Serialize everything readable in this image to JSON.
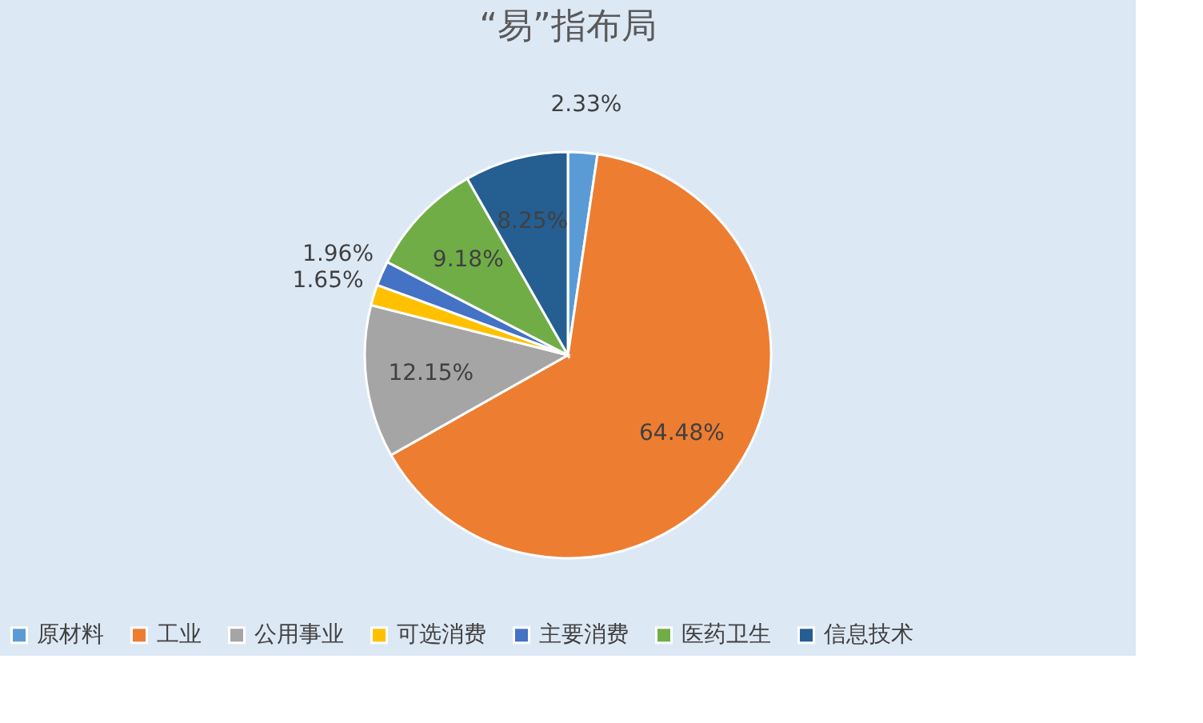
{
  "chart_data": {
    "type": "pie",
    "title": "“易”指布局",
    "categories": [
      "原材料",
      "工业",
      "公用事业",
      "可选消费",
      "主要消费",
      "医药卫生",
      "信息技术"
    ],
    "values": [
      2.33,
      64.48,
      12.15,
      1.65,
      1.96,
      9.18,
      8.25
    ],
    "colors": [
      "#5b9bd5",
      "#ed7d31",
      "#a5a5a5",
      "#ffc000",
      "#4472c4",
      "#70ad47",
      "#255e91"
    ],
    "value_labels": [
      "2.33%",
      "64.48%",
      "12.15%",
      "1.65%",
      "1.96%",
      "9.18%",
      "8.25%"
    ],
    "legend": "bottom"
  }
}
